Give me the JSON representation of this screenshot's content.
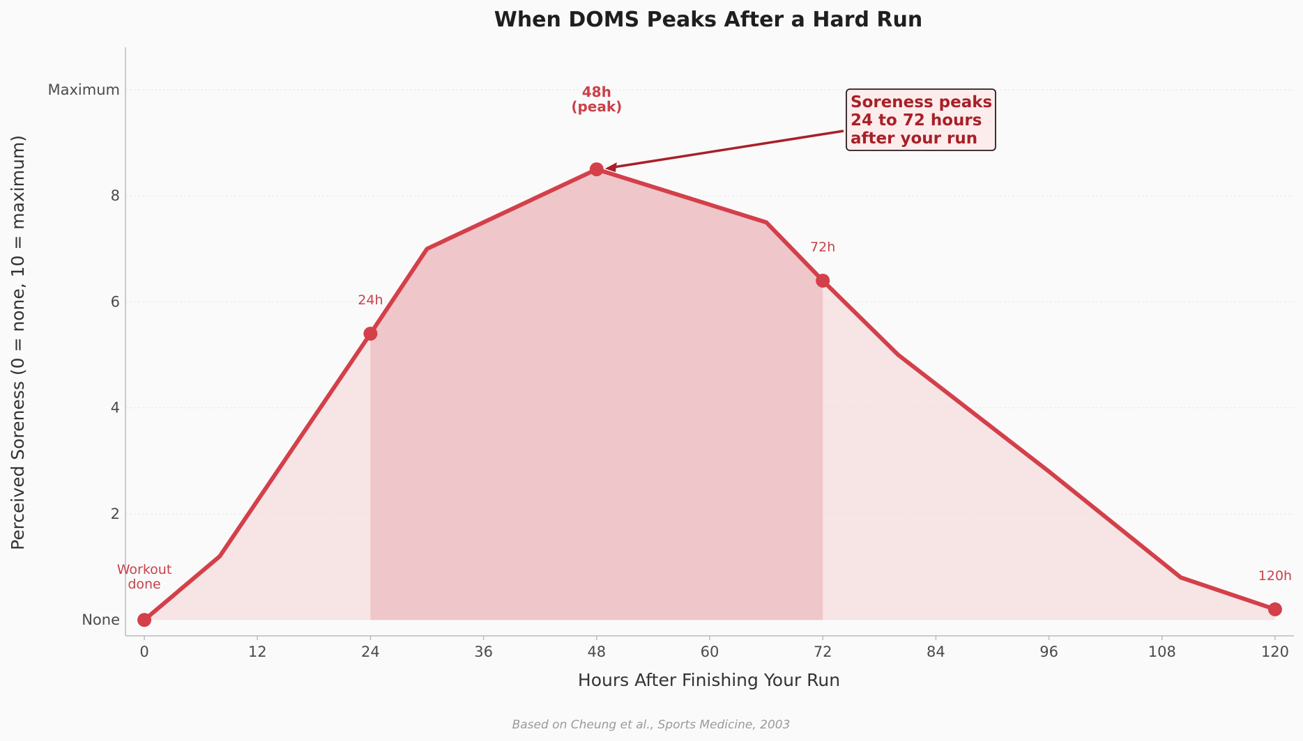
{
  "chart_data": {
    "type": "line",
    "title": "When DOMS Peaks After a Hard Run",
    "xlabel": "Hours After Finishing Your Run",
    "ylabel": "Perceived Soreness (0 = none, 10 = maximum)",
    "xlim": [
      -2,
      122
    ],
    "ylim": [
      -0.3,
      10.8
    ],
    "x_ticks": [
      0,
      12,
      24,
      36,
      48,
      60,
      72,
      84,
      96,
      108,
      120
    ],
    "y_ticks": [
      {
        "value": 0,
        "label": "None"
      },
      {
        "value": 2,
        "label": "2"
      },
      {
        "value": 4,
        "label": "4"
      },
      {
        "value": 6,
        "label": "6"
      },
      {
        "value": 8,
        "label": "8"
      },
      {
        "value": 10,
        "label": "Maximum"
      }
    ],
    "grid": "horizontal",
    "series": [
      {
        "x": [
          0,
          8,
          24,
          30,
          48,
          66,
          72,
          80,
          96,
          110,
          120
        ],
        "y": [
          0,
          1.2,
          5.4,
          7.0,
          8.5,
          7.5,
          6.4,
          5.0,
          2.8,
          0.8,
          0.2
        ]
      }
    ],
    "highlight_range": [
      24,
      72
    ],
    "marked_points": [
      {
        "x": 0,
        "y": 0,
        "label": "Workout\ndone",
        "bold": false
      },
      {
        "x": 24,
        "y": 5.4,
        "label": "24h",
        "bold": false
      },
      {
        "x": 48,
        "y": 8.5,
        "label": "48h\n(peak)",
        "bold": true
      },
      {
        "x": 72,
        "y": 6.4,
        "label": "72h",
        "bold": false
      },
      {
        "x": 120,
        "y": 0.2,
        "label": "120h",
        "bold": false
      }
    ],
    "callout": {
      "text": "Soreness peaks\n24 to 72 hours\nafter your run",
      "points_to": {
        "x": 48,
        "y": 8.5
      }
    },
    "source": "Based on Cheung et al., Sports Medicine, 2003",
    "colors": {
      "line": "#d3404a",
      "area_fill": "#f5d5d7",
      "highlight_fill": "#e8a7ad",
      "callout_text": "#a82028",
      "callout_bg": "#fdecec",
      "callout_border": "#2a1a1a",
      "grid": "#e6e6e6",
      "axis": "#bbbbbb"
    }
  }
}
